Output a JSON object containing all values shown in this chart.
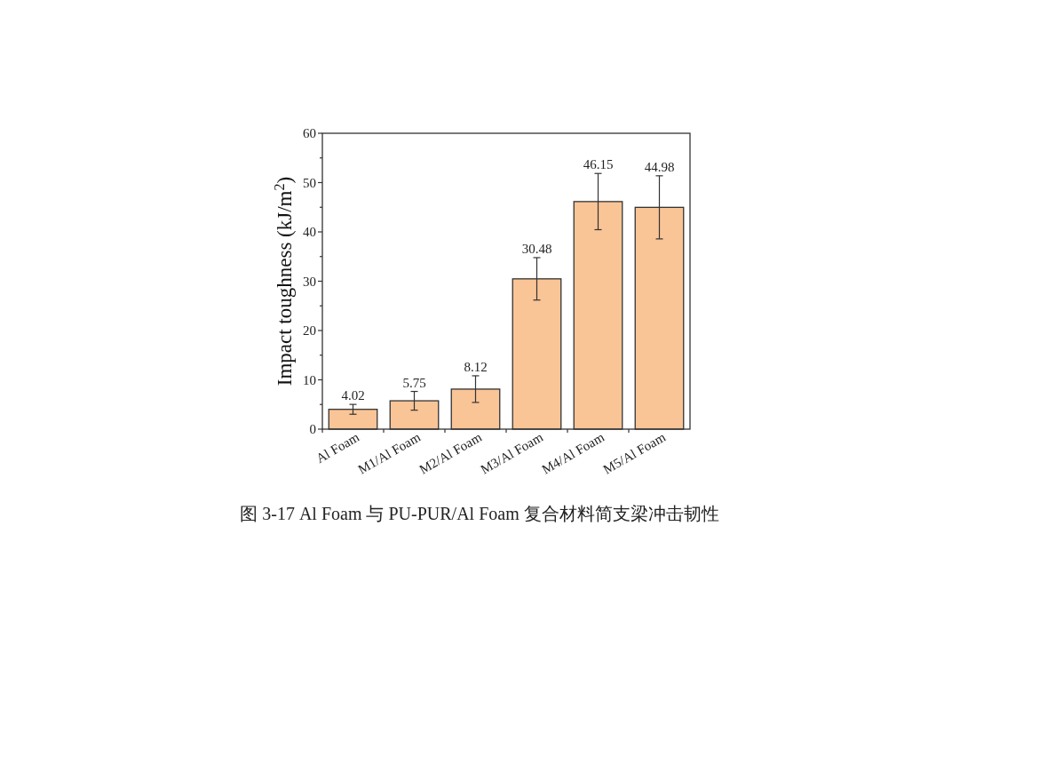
{
  "chart_data": {
    "type": "bar",
    "ylabel": "Impact toughness (kJ/m$^{2}$)",
    "categories": [
      "Al Foam",
      "M1/Al Foam",
      "M2/Al Foam",
      "M3/Al Foam",
      "M4/Al Foam",
      "M5/Al Foam"
    ],
    "values": [
      4.02,
      5.75,
      8.12,
      30.48,
      46.15,
      44.98
    ],
    "errors": [
      1.0,
      1.9,
      2.7,
      4.3,
      5.7,
      6.4
    ],
    "color": "#f9c496",
    "data_labels": true,
    "ylim": [
      0,
      60
    ],
    "yticks": [
      0,
      {
        "value": 5,
        "label": null
      },
      10,
      {
        "value": 15,
        "label": null
      },
      20,
      {
        "value": 25,
        "label": null
      },
      30,
      {
        "value": 35,
        "label": null
      },
      40,
      {
        "value": 45,
        "label": null
      },
      50,
      {
        "value": 55,
        "label": null
      },
      60
    ],
    "grid": false,
    "annotations": [
      "图 3-17 Al Foam 与 PU-PUR/Al Foam 复合材料简支梁冲击韧性"
    ]
  }
}
